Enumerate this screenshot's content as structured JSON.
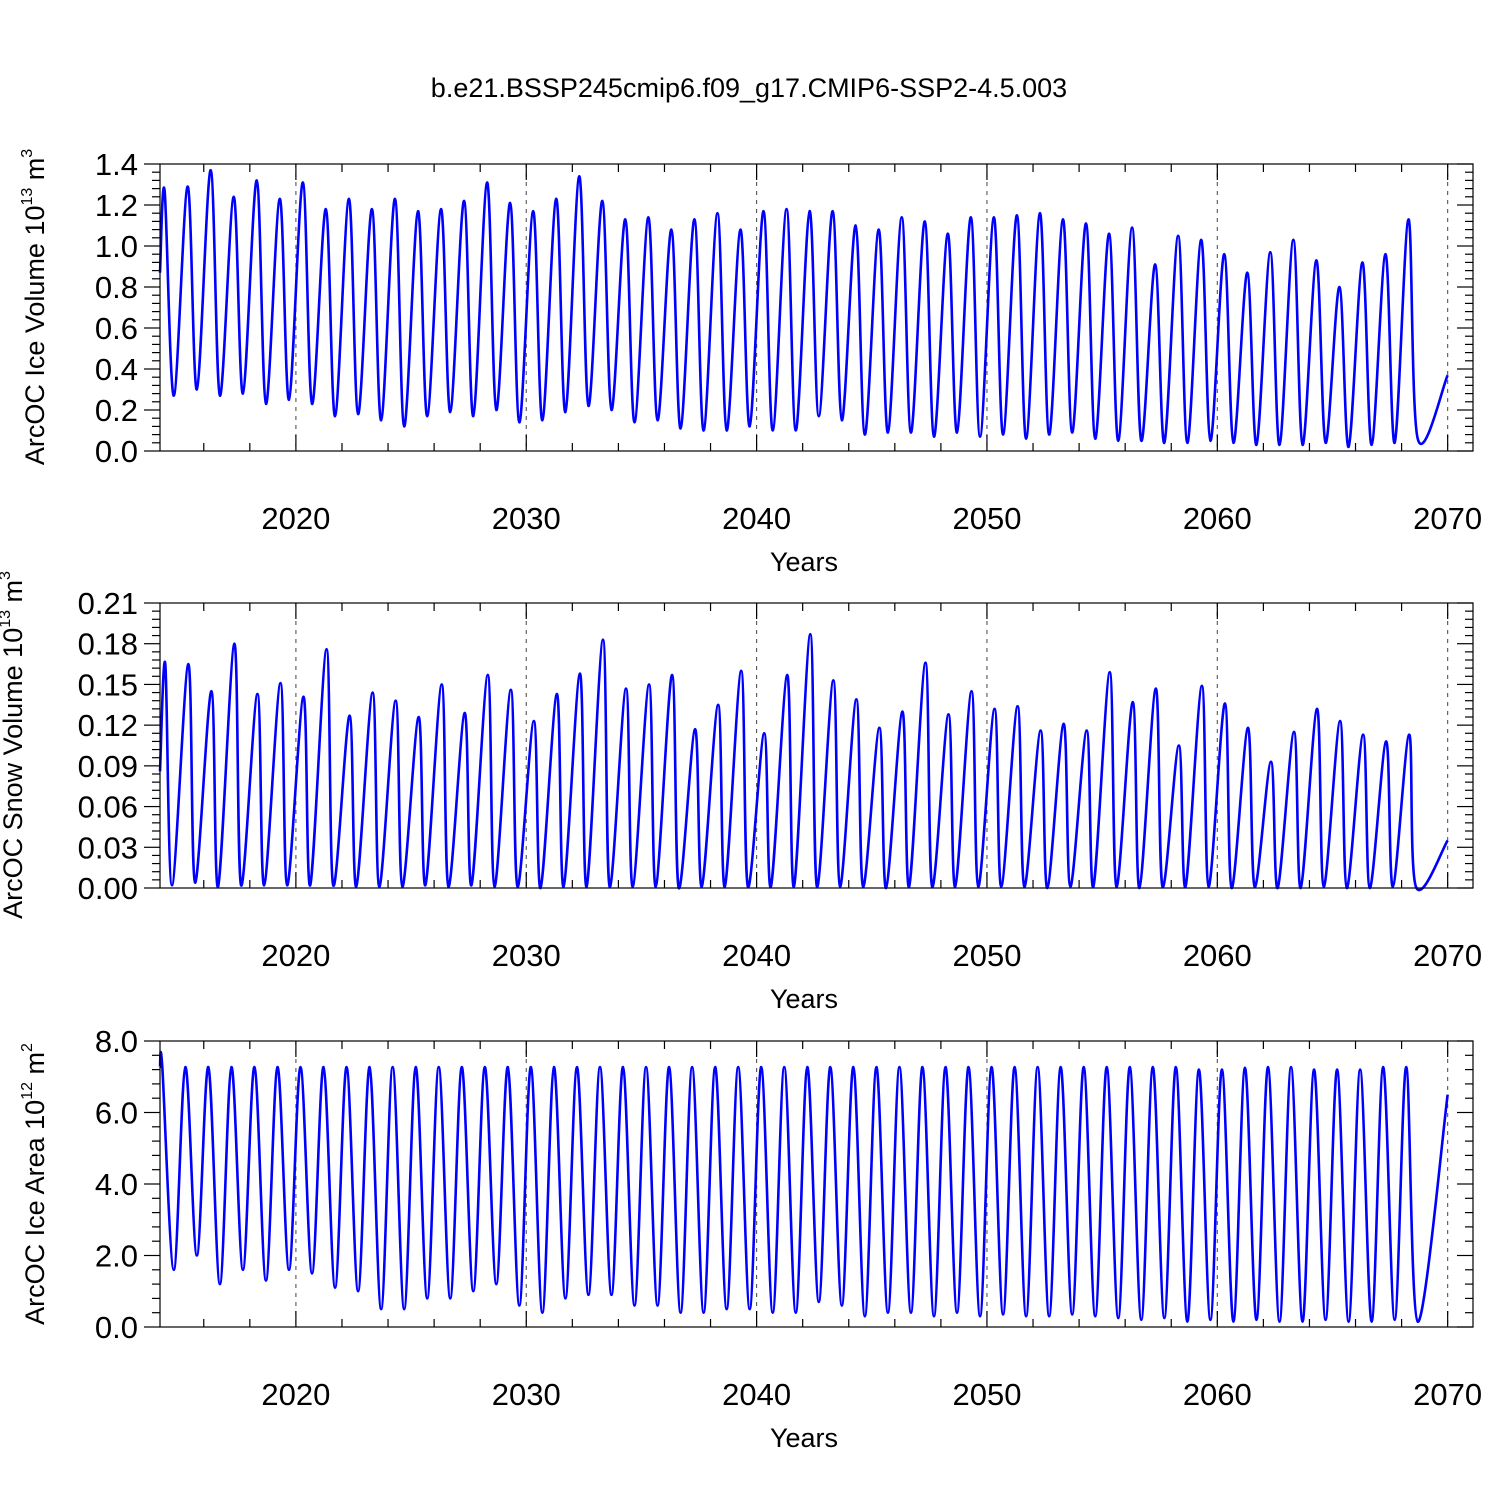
{
  "figure": {
    "title": "b.e21.BSSP245cmip6.f09_g17.CMIP6-SSP2-4.5.003"
  },
  "chart_data": [
    {
      "type": "line",
      "title": "b.e21.BSSP245cmip6.f09_g17.CMIP6-SSP2-4.5.003",
      "xlabel": "Years",
      "ylabel_main": "ArcOC Ice Volume 10",
      "ylabel_sup": "13",
      "ylabel_unit": " m",
      "ylabel_unit_sup": "3",
      "xlim": [
        2014.1,
        2071.1
      ],
      "ylim": [
        0.0,
        1.4
      ],
      "x_ticks": [
        2020,
        2030,
        2040,
        2050,
        2060,
        2070
      ],
      "x_tick_labels": [
        "2020",
        "2030",
        "2040",
        "2050",
        "2060",
        "2070"
      ],
      "y_ticks": [
        0.0,
        0.2,
        0.4,
        0.6,
        0.8,
        1.0,
        1.2,
        1.4
      ],
      "y_tick_labels": [
        "0.0",
        "0.2",
        "0.4",
        "0.6",
        "0.8",
        "1.0",
        "1.2",
        "1.4"
      ],
      "grid": "dashed vertical at decades",
      "series": [
        {
          "color": "#0000ff",
          "start": 2014.1,
          "start_value": 0.87,
          "end": 2070.0,
          "end_value": 0.37,
          "max_time": 0.3,
          "min_time": 0.7,
          "maxima": [
            1.27,
            1.29,
            1.37,
            1.24,
            1.32,
            1.23,
            1.31,
            1.18,
            1.23,
            1.18,
            1.23,
            1.17,
            1.18,
            1.22,
            1.31,
            1.21,
            1.17,
            1.23,
            1.34,
            1.22,
            1.13,
            1.14,
            1.08,
            1.13,
            1.16,
            1.08,
            1.17,
            1.18,
            1.17,
            1.17,
            1.1,
            1.08,
            1.14,
            1.12,
            1.06,
            1.14,
            1.14,
            1.15,
            1.16,
            1.13,
            1.11,
            1.06,
            1.09,
            0.91,
            1.05,
            1.03,
            0.96,
            0.87,
            0.97,
            1.03,
            0.93,
            0.8,
            0.92,
            0.96,
            1.13
          ],
          "minima": [
            0.27,
            0.3,
            0.27,
            0.28,
            0.23,
            0.25,
            0.23,
            0.17,
            0.18,
            0.15,
            0.12,
            0.17,
            0.19,
            0.17,
            0.2,
            0.14,
            0.15,
            0.19,
            0.22,
            0.2,
            0.14,
            0.15,
            0.11,
            0.1,
            0.1,
            0.12,
            0.1,
            0.1,
            0.17,
            0.15,
            0.08,
            0.09,
            0.09,
            0.07,
            0.09,
            0.07,
            0.08,
            0.06,
            0.08,
            0.09,
            0.06,
            0.05,
            0.05,
            0.04,
            0.04,
            0.05,
            0.04,
            0.03,
            0.03,
            0.03,
            0.04,
            0.02,
            0.03,
            0.04,
            0.06
          ]
        }
      ]
    },
    {
      "type": "line",
      "xlabel": "Years",
      "ylabel_main": "ArcOC Snow Volume 10",
      "ylabel_sup": "13",
      "ylabel_unit": " m",
      "ylabel_unit_sup": "3",
      "xlim": [
        2014.1,
        2071.1
      ],
      "ylim": [
        0.0,
        0.21
      ],
      "x_ticks": [
        2020,
        2030,
        2040,
        2050,
        2060,
        2070
      ],
      "x_tick_labels": [
        "2020",
        "2030",
        "2040",
        "2050",
        "2060",
        "2070"
      ],
      "y_ticks": [
        0.0,
        0.03,
        0.06,
        0.09,
        0.12,
        0.15,
        0.18,
        0.21
      ],
      "y_tick_labels": [
        "0.00",
        "0.03",
        "0.06",
        "0.09",
        "0.12",
        "0.15",
        "0.18",
        "0.21"
      ],
      "grid": "dashed vertical at decades",
      "series": [
        {
          "color": "#0000ff",
          "start": 2014.1,
          "start_value": 0.086,
          "end": 2070.0,
          "end_value": 0.035,
          "max_time": 0.33,
          "min_time": 0.62,
          "maxima": [
            0.165,
            0.165,
            0.145,
            0.18,
            0.143,
            0.151,
            0.141,
            0.176,
            0.127,
            0.144,
            0.138,
            0.126,
            0.15,
            0.129,
            0.157,
            0.146,
            0.123,
            0.143,
            0.158,
            0.183,
            0.147,
            0.15,
            0.157,
            0.117,
            0.135,
            0.16,
            0.114,
            0.157,
            0.187,
            0.153,
            0.139,
            0.118,
            0.13,
            0.166,
            0.128,
            0.145,
            0.132,
            0.134,
            0.116,
            0.121,
            0.116,
            0.159,
            0.137,
            0.147,
            0.105,
            0.149,
            0.136,
            0.118,
            0.093,
            0.115,
            0.132,
            0.123,
            0.113,
            0.108,
            0.113
          ],
          "minima": [
            0.002,
            0.004,
            0.001,
            0.002,
            0.002,
            0.002,
            0.002,
            0.002,
            0.001,
            0.001,
            0.001,
            0.002,
            0.001,
            0.002,
            0.001,
            0.001,
            0.0,
            0.001,
            0.001,
            0.001,
            0.001,
            0.001,
            0.0,
            0.001,
            0.001,
            0.001,
            0.001,
            0.001,
            0.001,
            0.001,
            0.001,
            0.0,
            0.001,
            0.001,
            0.001,
            0.001,
            0.001,
            0.001,
            0.0,
            0.001,
            0.001,
            0.001,
            0.0,
            0.001,
            0.001,
            0.001,
            0.0,
            0.001,
            0.0,
            0.0,
            0.001,
            0.0,
            0.0,
            0.001,
            0.001
          ]
        }
      ]
    },
    {
      "type": "line",
      "xlabel": "Years",
      "ylabel_main": "ArcOC Ice Area 10",
      "ylabel_sup": "12",
      "ylabel_unit": " m",
      "ylabel_unit_sup": "2",
      "xlim": [
        2014.1,
        2071.1
      ],
      "ylim": [
        0.0,
        8.0
      ],
      "x_ticks": [
        2020,
        2030,
        2040,
        2050,
        2060,
        2070
      ],
      "x_tick_labels": [
        "2020",
        "2030",
        "2040",
        "2050",
        "2060",
        "2070"
      ],
      "y_ticks": [
        0.0,
        2.0,
        4.0,
        6.0,
        8.0
      ],
      "y_tick_labels": [
        "0.0",
        "2.0",
        "4.0",
        "6.0",
        "8.0"
      ],
      "grid": "dashed vertical at decades",
      "series": [
        {
          "color": "#0000ff",
          "start": 2014.1,
          "start_value": 7.27,
          "end": 2070.0,
          "end_value": 6.5,
          "max_time": 0.2,
          "min_time": 0.7,
          "maxima": [
            7.27,
            7.27,
            7.27,
            7.27,
            7.27,
            7.27,
            7.27,
            7.27,
            7.27,
            7.27,
            7.27,
            7.27,
            7.27,
            7.27,
            7.27,
            7.27,
            7.27,
            7.27,
            7.27,
            7.27,
            7.27,
            7.27,
            7.27,
            7.27,
            7.27,
            7.27,
            7.27,
            7.27,
            7.27,
            7.27,
            7.27,
            7.27,
            7.27,
            7.27,
            7.27,
            7.27,
            7.27,
            7.27,
            7.27,
            7.27,
            7.27,
            7.27,
            7.27,
            7.27,
            7.27,
            7.2,
            7.2,
            7.25,
            7.27,
            7.27,
            7.2,
            7.2,
            7.2,
            7.27,
            7.27
          ],
          "minima": [
            1.6,
            2.0,
            1.2,
            1.6,
            1.3,
            1.6,
            1.5,
            1.1,
            1.0,
            0.5,
            0.5,
            0.8,
            0.8,
            1.0,
            1.2,
            0.6,
            0.4,
            0.8,
            0.9,
            0.9,
            0.6,
            0.6,
            0.4,
            0.4,
            0.5,
            0.5,
            0.4,
            0.4,
            0.7,
            0.6,
            0.3,
            0.4,
            0.4,
            0.3,
            0.4,
            0.3,
            0.35,
            0.3,
            0.3,
            0.35,
            0.3,
            0.25,
            0.2,
            0.25,
            0.15,
            0.2,
            0.15,
            0.2,
            0.15,
            0.15,
            0.2,
            0.15,
            0.15,
            0.2,
            0.15
          ]
        }
      ]
    }
  ]
}
